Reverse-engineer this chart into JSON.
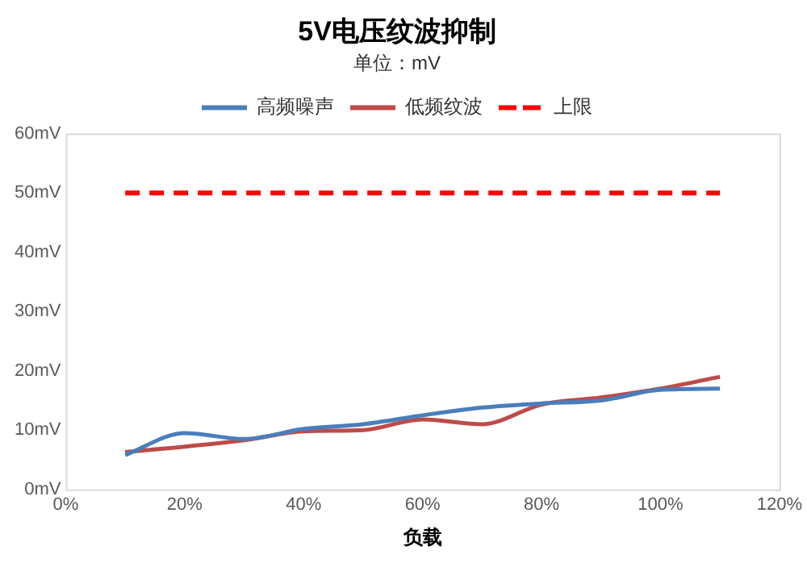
{
  "chart_data": {
    "type": "line",
    "title": "5V电压纹波抑制",
    "subtitle": "单位：mV",
    "xlabel": "负载",
    "x": [
      10,
      20,
      30,
      40,
      50,
      60,
      70,
      80,
      90,
      100,
      110
    ],
    "series": [
      {
        "name": "高频噪声",
        "color": "#4a7ebb",
        "values": [
          5.8,
          9.5,
          8.5,
          10.2,
          11,
          12.5,
          13.8,
          14.5,
          15,
          16.8,
          17
        ]
      },
      {
        "name": "低频纹波",
        "color": "#be4b48",
        "values": [
          6.3,
          7.2,
          8.3,
          9.8,
          10,
          11.8,
          11,
          14.3,
          15.5,
          17,
          19
        ]
      },
      {
        "name": "上限",
        "color": "#ff0000",
        "line_style": "dashed",
        "values": [
          50,
          50,
          50,
          50,
          50,
          50,
          50,
          50,
          50,
          50,
          50
        ]
      }
    ],
    "xlim": [
      0,
      120
    ],
    "xticks": [
      {
        "value": 0,
        "label": "0%"
      },
      {
        "value": 20,
        "label": "20%"
      },
      {
        "value": 40,
        "label": "40%"
      },
      {
        "value": 60,
        "label": "60%"
      },
      {
        "value": 80,
        "label": "80%"
      },
      {
        "value": 100,
        "label": "100%"
      },
      {
        "value": 120,
        "label": "120%"
      }
    ],
    "ylim": [
      0,
      60
    ],
    "yticks": [
      {
        "value": 0,
        "label": "0mV"
      },
      {
        "value": 10,
        "label": "10mV"
      },
      {
        "value": 20,
        "label": "20mV"
      },
      {
        "value": 30,
        "label": "30mV"
      },
      {
        "value": 40,
        "label": "40mV"
      },
      {
        "value": 50,
        "label": "50mV"
      },
      {
        "value": 60,
        "label": "60mV"
      }
    ],
    "grid": false,
    "legend": "top",
    "marker": "none"
  }
}
